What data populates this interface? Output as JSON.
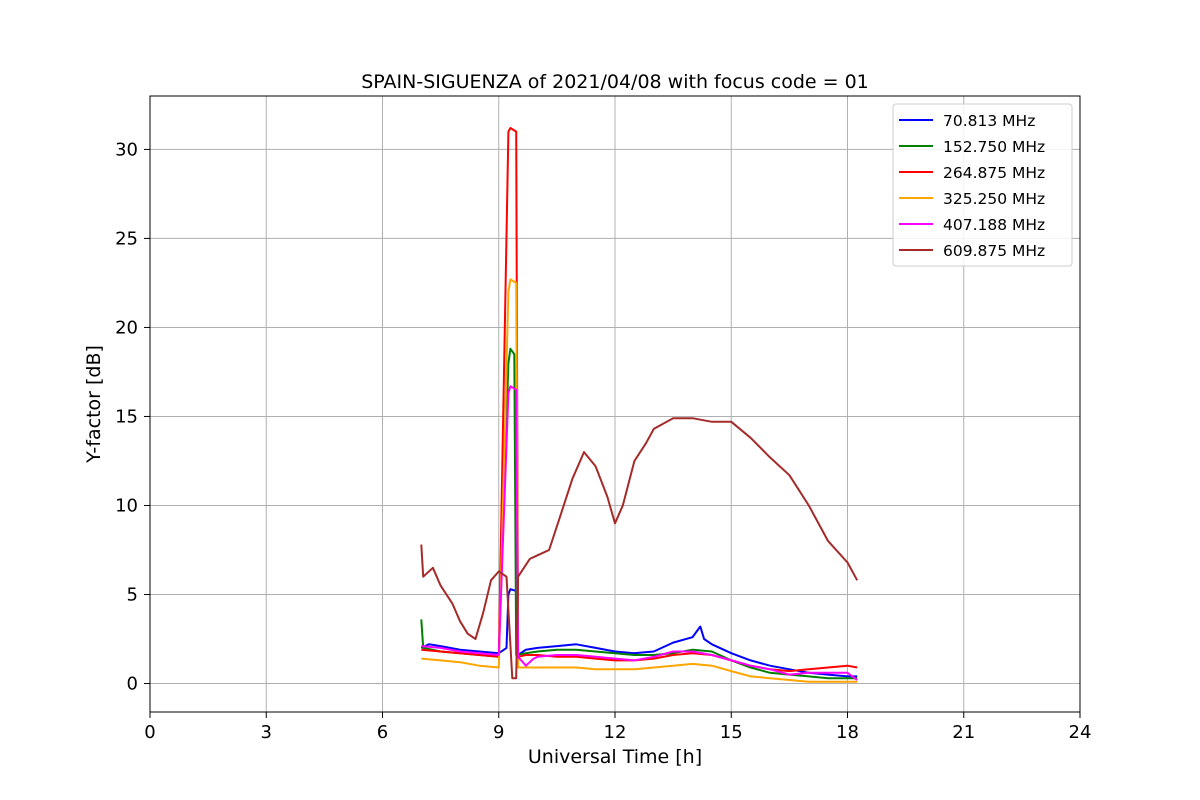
{
  "chart_data": {
    "type": "line",
    "title": "SPAIN-SIGUENZA of 2021/04/08 with focus code = 01",
    "xlabel": "Universal Time [h]",
    "ylabel": "Y-factor [dB]",
    "xlim": [
      0,
      24
    ],
    "ylim": [
      -1.6,
      33
    ],
    "xticks": [
      "0",
      "3",
      "6",
      "9",
      "12",
      "15",
      "18",
      "21",
      "24"
    ],
    "yticks": [
      "0",
      "5",
      "10",
      "15",
      "20",
      "25",
      "30"
    ],
    "grid": true,
    "legend_position": "top-right",
    "series": [
      {
        "name": " 70.813 MHz",
        "color": "#0000ff",
        "points": [
          [
            7.0,
            2.0
          ],
          [
            7.2,
            2.2
          ],
          [
            7.5,
            2.1
          ],
          [
            8.0,
            1.9
          ],
          [
            8.5,
            1.8
          ],
          [
            9.0,
            1.7
          ],
          [
            9.2,
            2.0
          ],
          [
            9.25,
            5.0
          ],
          [
            9.3,
            5.3
          ],
          [
            9.45,
            5.2
          ],
          [
            9.5,
            1.6
          ],
          [
            9.7,
            1.9
          ],
          [
            10.0,
            2.0
          ],
          [
            10.5,
            2.1
          ],
          [
            11.0,
            2.2
          ],
          [
            11.5,
            2.0
          ],
          [
            12.0,
            1.8
          ],
          [
            12.5,
            1.7
          ],
          [
            13.0,
            1.8
          ],
          [
            13.5,
            2.3
          ],
          [
            14.0,
            2.6
          ],
          [
            14.2,
            3.2
          ],
          [
            14.3,
            2.5
          ],
          [
            14.5,
            2.2
          ],
          [
            15.0,
            1.7
          ],
          [
            15.5,
            1.3
          ],
          [
            16.0,
            1.0
          ],
          [
            16.5,
            0.8
          ],
          [
            17.0,
            0.6
          ],
          [
            17.5,
            0.5
          ],
          [
            18.0,
            0.4
          ],
          [
            18.25,
            0.4
          ]
        ]
      },
      {
        "name": "152.750 MHz",
        "color": "#008000",
        "points": [
          [
            7.0,
            3.6
          ],
          [
            7.05,
            2.0
          ],
          [
            7.5,
            1.8
          ],
          [
            8.0,
            1.7
          ],
          [
            8.5,
            1.6
          ],
          [
            9.0,
            1.5
          ],
          [
            9.25,
            18.0
          ],
          [
            9.3,
            18.8
          ],
          [
            9.4,
            18.5
          ],
          [
            9.45,
            1.6
          ],
          [
            9.7,
            1.7
          ],
          [
            10.0,
            1.8
          ],
          [
            10.5,
            1.9
          ],
          [
            11.0,
            1.9
          ],
          [
            11.5,
            1.8
          ],
          [
            12.0,
            1.7
          ],
          [
            12.5,
            1.6
          ],
          [
            13.0,
            1.6
          ],
          [
            13.5,
            1.7
          ],
          [
            14.0,
            1.9
          ],
          [
            14.5,
            1.8
          ],
          [
            15.0,
            1.3
          ],
          [
            15.5,
            0.9
          ],
          [
            16.0,
            0.6
          ],
          [
            16.5,
            0.5
          ],
          [
            17.0,
            0.4
          ],
          [
            17.5,
            0.3
          ],
          [
            18.0,
            0.3
          ],
          [
            18.25,
            0.3
          ]
        ]
      },
      {
        "name": "264.875 MHz",
        "color": "#ff0000",
        "points": [
          [
            7.0,
            1.9
          ],
          [
            7.5,
            1.8
          ],
          [
            8.0,
            1.7
          ],
          [
            8.5,
            1.6
          ],
          [
            9.0,
            1.5
          ],
          [
            9.25,
            31.0
          ],
          [
            9.3,
            31.2
          ],
          [
            9.45,
            31.0
          ],
          [
            9.5,
            1.5
          ],
          [
            9.7,
            1.6
          ],
          [
            10.0,
            1.6
          ],
          [
            10.5,
            1.5
          ],
          [
            11.0,
            1.5
          ],
          [
            11.5,
            1.4
          ],
          [
            12.0,
            1.3
          ],
          [
            12.5,
            1.3
          ],
          [
            13.0,
            1.4
          ],
          [
            13.5,
            1.6
          ],
          [
            14.0,
            1.7
          ],
          [
            14.5,
            1.6
          ],
          [
            15.0,
            1.3
          ],
          [
            15.5,
            1.0
          ],
          [
            16.0,
            0.8
          ],
          [
            16.5,
            0.7
          ],
          [
            17.0,
            0.8
          ],
          [
            17.5,
            0.9
          ],
          [
            18.0,
            1.0
          ],
          [
            18.25,
            0.9
          ]
        ]
      },
      {
        "name": "325.250 MHz",
        "color": "#ffa500",
        "points": [
          [
            7.0,
            1.4
          ],
          [
            7.5,
            1.3
          ],
          [
            8.0,
            1.2
          ],
          [
            8.5,
            1.0
          ],
          [
            9.0,
            0.9
          ],
          [
            9.25,
            22.0
          ],
          [
            9.3,
            22.7
          ],
          [
            9.45,
            22.5
          ],
          [
            9.5,
            0.9
          ],
          [
            10.0,
            0.9
          ],
          [
            10.5,
            0.9
          ],
          [
            11.0,
            0.9
          ],
          [
            11.5,
            0.8
          ],
          [
            12.0,
            0.8
          ],
          [
            12.5,
            0.8
          ],
          [
            13.0,
            0.9
          ],
          [
            13.5,
            1.0
          ],
          [
            14.0,
            1.1
          ],
          [
            14.5,
            1.0
          ],
          [
            15.0,
            0.7
          ],
          [
            15.5,
            0.4
          ],
          [
            16.0,
            0.3
          ],
          [
            16.5,
            0.2
          ],
          [
            17.0,
            0.1
          ],
          [
            17.5,
            0.1
          ],
          [
            18.0,
            0.1
          ],
          [
            18.25,
            0.1
          ]
        ]
      },
      {
        "name": "407.188 MHz",
        "color": "#ff00ff",
        "points": [
          [
            7.0,
            2.1
          ],
          [
            7.5,
            2.0
          ],
          [
            8.0,
            1.8
          ],
          [
            8.5,
            1.7
          ],
          [
            9.0,
            1.6
          ],
          [
            9.25,
            16.3
          ],
          [
            9.3,
            16.7
          ],
          [
            9.45,
            16.5
          ],
          [
            9.5,
            1.5
          ],
          [
            9.7,
            1.0
          ],
          [
            9.9,
            1.4
          ],
          [
            10.0,
            1.5
          ],
          [
            10.5,
            1.6
          ],
          [
            11.0,
            1.6
          ],
          [
            11.5,
            1.5
          ],
          [
            12.0,
            1.4
          ],
          [
            12.5,
            1.3
          ],
          [
            13.0,
            1.5
          ],
          [
            13.5,
            1.8
          ],
          [
            14.0,
            1.8
          ],
          [
            14.5,
            1.6
          ],
          [
            15.0,
            1.3
          ],
          [
            15.5,
            1.0
          ],
          [
            16.0,
            0.8
          ],
          [
            16.5,
            0.5
          ],
          [
            17.0,
            0.6
          ],
          [
            17.5,
            0.6
          ],
          [
            18.0,
            0.6
          ],
          [
            18.25,
            0.2
          ]
        ]
      },
      {
        "name": "609.875 MHz",
        "color": "#a52a2a",
        "points": [
          [
            7.0,
            7.8
          ],
          [
            7.05,
            6.0
          ],
          [
            7.3,
            6.5
          ],
          [
            7.5,
            5.5
          ],
          [
            7.8,
            4.5
          ],
          [
            8.0,
            3.5
          ],
          [
            8.2,
            2.8
          ],
          [
            8.4,
            2.5
          ],
          [
            8.6,
            4.0
          ],
          [
            8.8,
            5.8
          ],
          [
            9.0,
            6.3
          ],
          [
            9.2,
            6.0
          ],
          [
            9.35,
            0.3
          ],
          [
            9.45,
            0.3
          ],
          [
            9.5,
            6.0
          ],
          [
            9.8,
            7.0
          ],
          [
            10.0,
            7.2
          ],
          [
            10.3,
            7.5
          ],
          [
            10.6,
            9.5
          ],
          [
            10.9,
            11.5
          ],
          [
            11.2,
            13.0
          ],
          [
            11.5,
            12.2
          ],
          [
            11.8,
            10.5
          ],
          [
            12.0,
            9.0
          ],
          [
            12.2,
            10.0
          ],
          [
            12.5,
            12.5
          ],
          [
            12.8,
            13.5
          ],
          [
            13.0,
            14.3
          ],
          [
            13.5,
            14.9
          ],
          [
            14.0,
            14.9
          ],
          [
            14.5,
            14.7
          ],
          [
            15.0,
            14.7
          ],
          [
            15.5,
            13.8
          ],
          [
            16.0,
            12.7
          ],
          [
            16.5,
            11.7
          ],
          [
            17.0,
            10.0
          ],
          [
            17.5,
            8.0
          ],
          [
            18.0,
            6.8
          ],
          [
            18.25,
            5.8
          ]
        ]
      }
    ]
  }
}
